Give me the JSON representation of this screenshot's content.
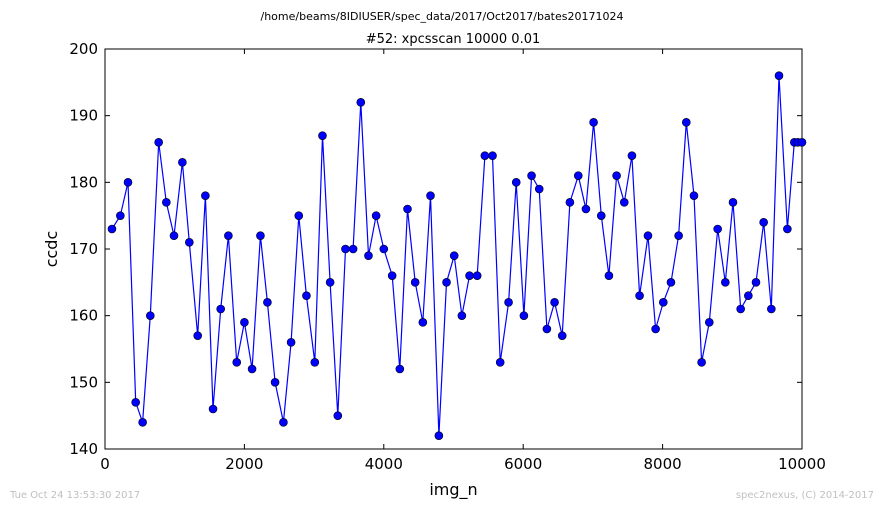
{
  "header": {
    "path": "/home/beams/8IDIUSER/spec_data/2017/Oct2017/bates20171024"
  },
  "footer": {
    "timestamp": "Tue Oct 24 13:53:30 2017",
    "credit": "spec2nexus, (C) 2014-2017"
  },
  "colors": {
    "series": "#0000ff",
    "axes": "#000000",
    "footer_text": "#c0c0c0"
  },
  "chart_data": {
    "type": "line",
    "title": "#52: xpcsscan 10000 0.01",
    "xlabel": "img_n",
    "ylabel": "ccdc",
    "xlim": [
      0,
      10000
    ],
    "ylim": [
      140,
      200
    ],
    "xticks": [
      0,
      2000,
      4000,
      6000,
      8000,
      10000
    ],
    "yticks": [
      140,
      150,
      160,
      170,
      180,
      190,
      200
    ],
    "xtick_labels": [
      "0",
      "2000",
      "4000",
      "6000",
      "8000",
      "10000"
    ],
    "ytick_labels": [
      "140",
      "150",
      "160",
      "170",
      "180",
      "190",
      "200"
    ],
    "grid": false,
    "legend": false,
    "marker": "circle",
    "series": [
      {
        "x": [
          100,
          220,
          330,
          440,
          540,
          650,
          770,
          880,
          990,
          1110,
          1210,
          1330,
          1440,
          1550,
          1660,
          1770,
          1890,
          2000,
          2110,
          2230,
          2330,
          2440,
          2560,
          2670,
          2780,
          2890,
          3010,
          3120,
          3230,
          3340,
          3450,
          3560,
          3670,
          3780,
          3890,
          4000,
          4120,
          4230,
          4340,
          4450,
          4560,
          4670,
          4790,
          4900,
          5010,
          5120,
          5230,
          5340,
          5450,
          5560,
          5670,
          5790,
          5900,
          6010,
          6120,
          6230,
          6340,
          6450,
          6560,
          6670,
          6790,
          6900,
          7010,
          7120,
          7230,
          7340,
          7450,
          7560,
          7670,
          7790,
          7900,
          8010,
          8120,
          8230,
          8340,
          8450,
          8560,
          8670,
          8790,
          8900,
          9010,
          9120,
          9230,
          9340,
          9450,
          9560,
          9670,
          9790,
          9890,
          9940,
          10000
        ],
        "y": [
          173,
          175,
          180,
          147,
          144,
          160,
          186,
          177,
          172,
          183,
          171,
          157,
          178,
          146,
          161,
          172,
          153,
          159,
          152,
          172,
          162,
          150,
          144,
          156,
          175,
          163,
          153,
          187,
          165,
          145,
          170,
          170,
          192,
          169,
          175,
          170,
          166,
          152,
          176,
          165,
          159,
          178,
          142,
          165,
          169,
          160,
          166,
          166,
          184,
          184,
          153,
          162,
          180,
          160,
          181,
          179,
          158,
          162,
          157,
          177,
          181,
          176,
          189,
          175,
          166,
          181,
          177,
          184,
          163,
          172,
          158,
          162,
          165,
          172,
          189,
          178,
          153,
          159,
          173,
          165,
          177,
          161,
          163,
          165,
          174,
          161,
          196,
          173,
          186,
          186,
          186
        ]
      }
    ]
  }
}
